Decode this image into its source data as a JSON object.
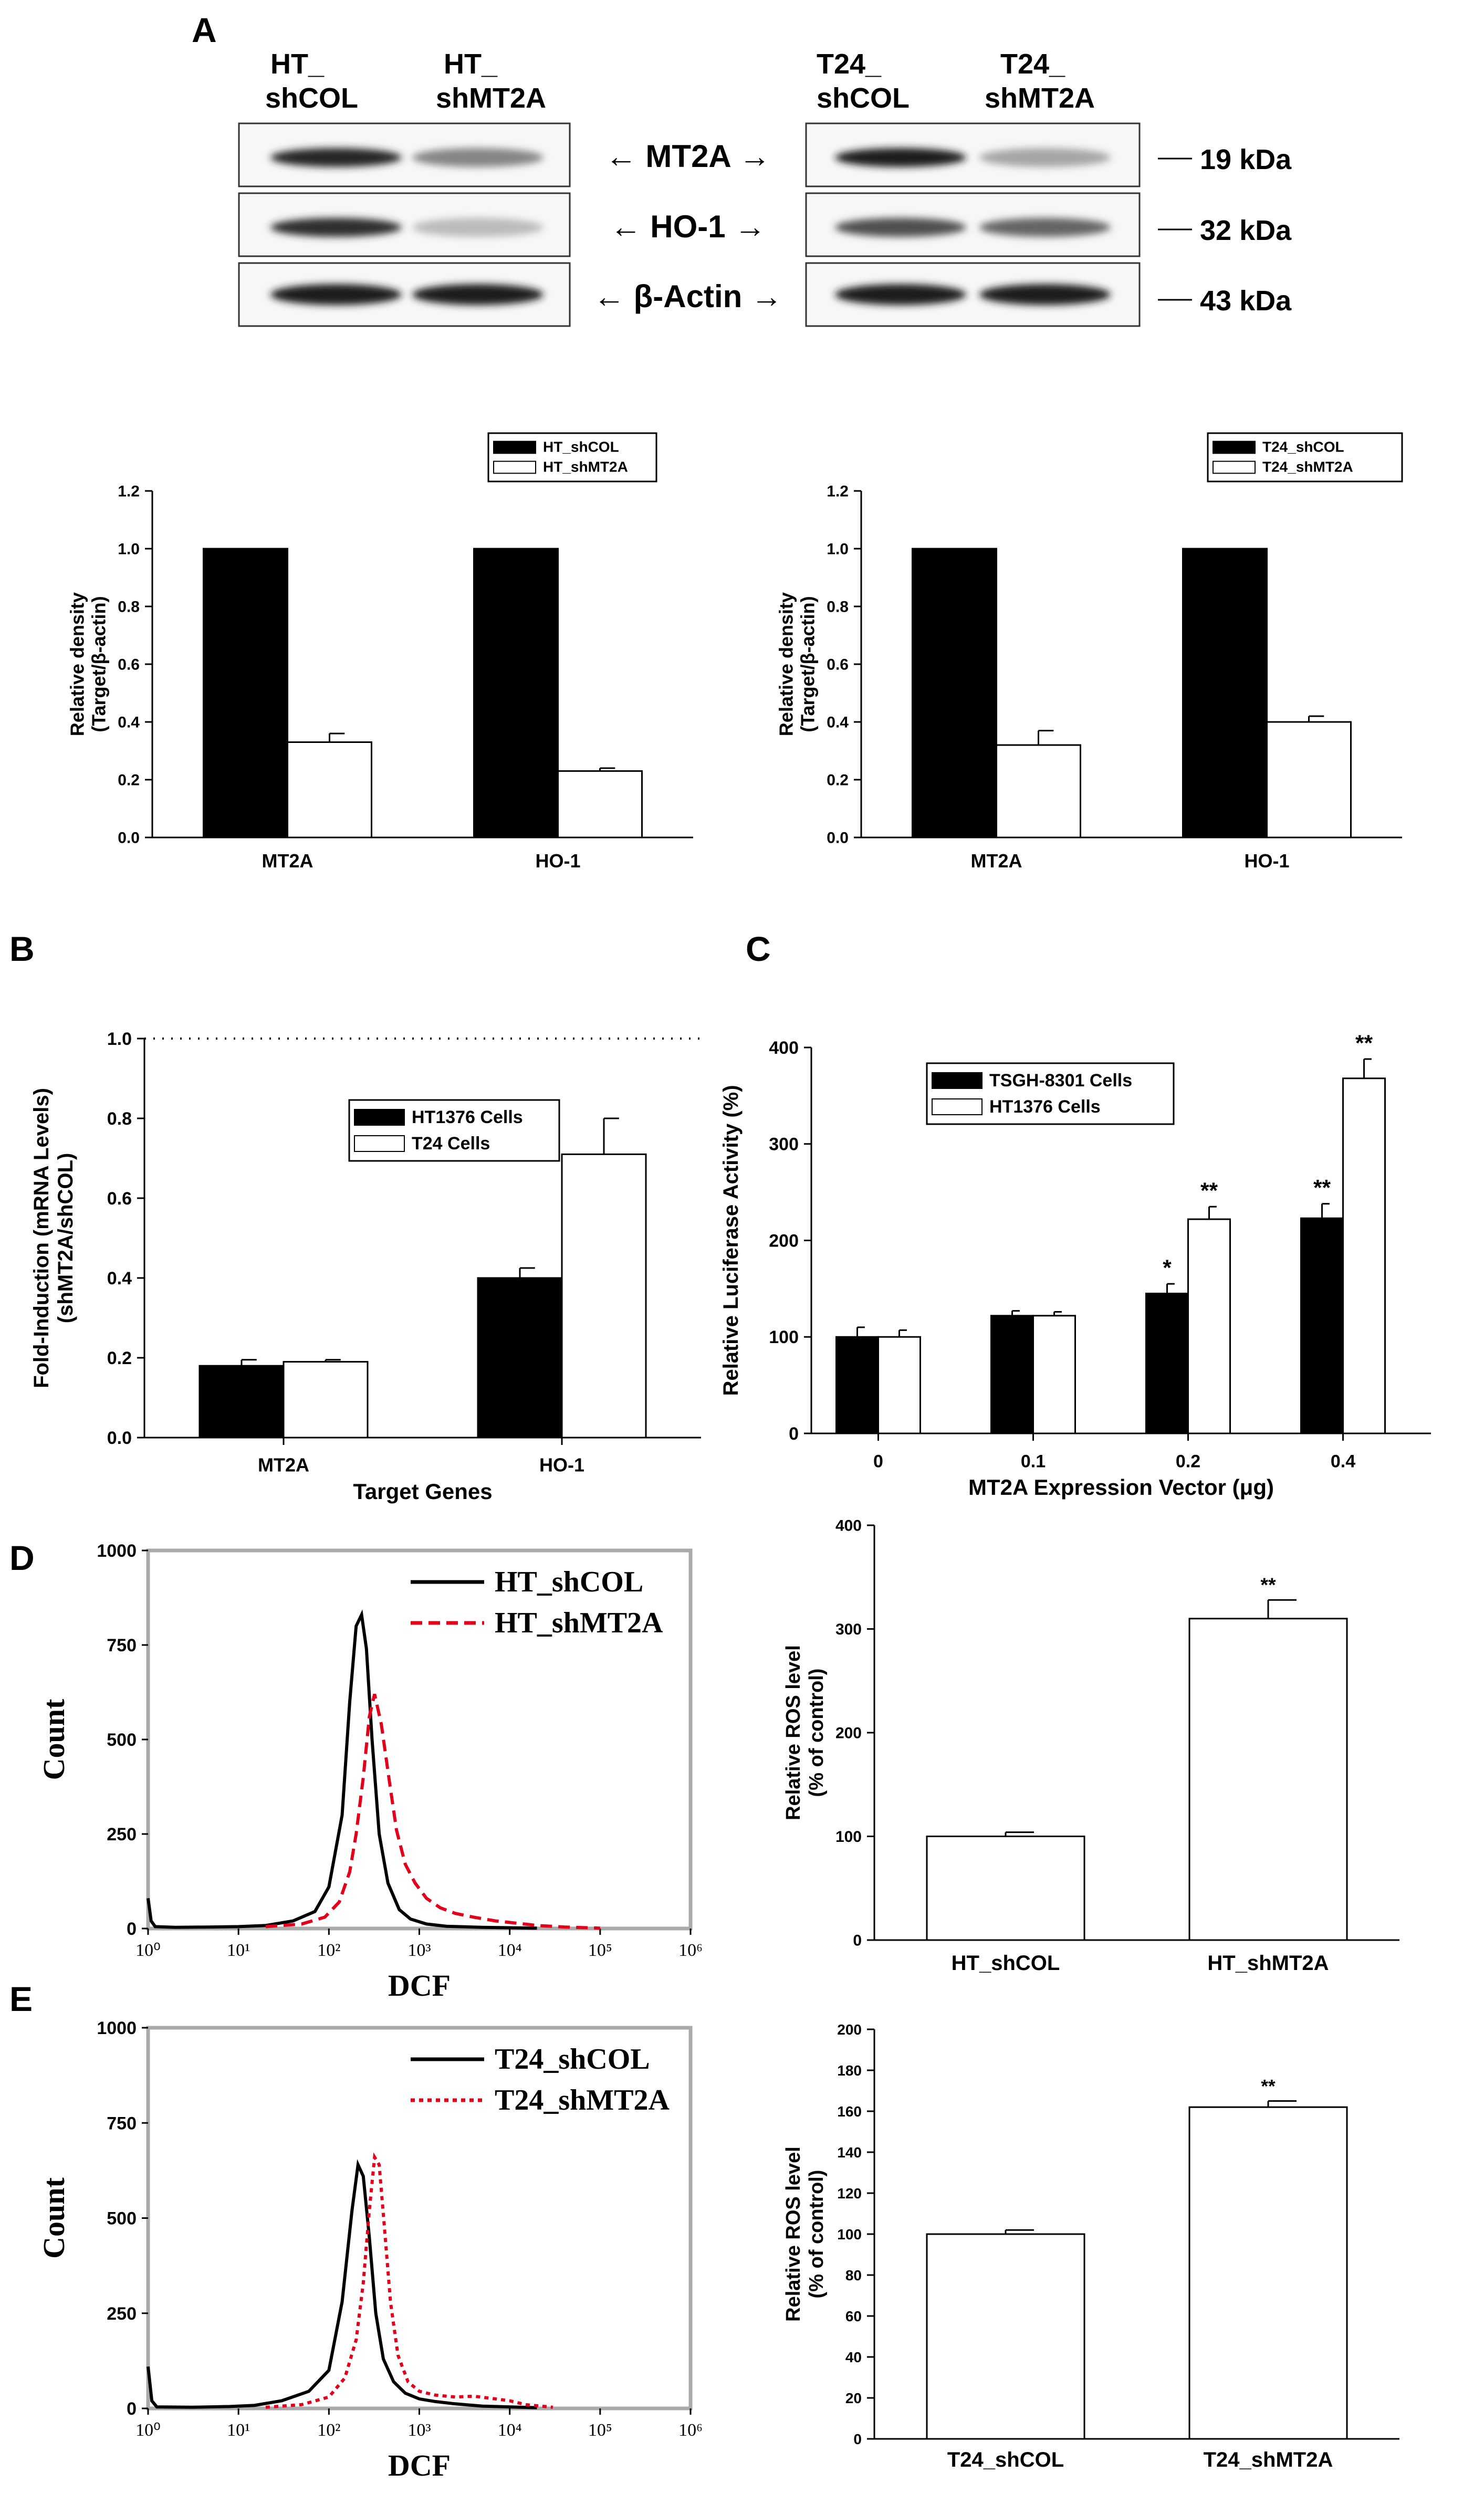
{
  "panel_labels": {
    "a": "A",
    "b": "B",
    "c": "C",
    "d": "D",
    "e": "E"
  },
  "western_blot": {
    "lanes_ht": [
      "HT_",
      "shCOL",
      "HT_",
      "shMT2A"
    ],
    "lanes_t24": [
      "T24_",
      "shCOL",
      "T24_",
      "shMT2A"
    ],
    "arrows": [
      "← MT2A →",
      "← HO-1 →",
      "← β-Actin →"
    ],
    "sizes": [
      "19 kDa",
      "32 kDa",
      "43 kDa"
    ],
    "bands": [
      {
        "ht": [
          0.9,
          0.45
        ],
        "t24": [
          0.95,
          0.3
        ]
      },
      {
        "ht": [
          0.85,
          0.2
        ],
        "t24": [
          0.7,
          0.6
        ]
      },
      {
        "ht": [
          0.95,
          0.95
        ],
        "t24": [
          0.95,
          0.95
        ]
      }
    ]
  },
  "chart_data": [
    {
      "id": "A-left",
      "type": "bar",
      "categories": [
        "MT2A",
        "HO-1"
      ],
      "series": [
        {
          "name": "HT_shCOL",
          "values": [
            1.0,
            1.0
          ],
          "errors": [
            0,
            0
          ],
          "color": "#000000"
        },
        {
          "name": "HT_shMT2A",
          "values": [
            0.33,
            0.23
          ],
          "errors": [
            0.03,
            0.01
          ],
          "color": "#ffffff"
        }
      ],
      "ylabel": [
        "Relative density",
        "(Target/β-actin)"
      ],
      "ylim": [
        0,
        1.2
      ],
      "yticks": [
        "0.0",
        "0.2",
        "0.4",
        "0.6",
        "0.8",
        "1.0",
        "1.2"
      ],
      "legend": "top"
    },
    {
      "id": "A-right",
      "type": "bar",
      "categories": [
        "MT2A",
        "HO-1"
      ],
      "series": [
        {
          "name": "T24_shCOL",
          "values": [
            1.0,
            1.0
          ],
          "errors": [
            0,
            0
          ],
          "color": "#000000"
        },
        {
          "name": "T24_shMT2A",
          "values": [
            0.32,
            0.4
          ],
          "errors": [
            0.05,
            0.02
          ],
          "color": "#ffffff"
        }
      ],
      "ylabel": [
        "Relative density",
        "(Target/β-actin)"
      ],
      "ylim": [
        0,
        1.2
      ],
      "yticks": [
        "0.0",
        "0.2",
        "0.4",
        "0.6",
        "0.8",
        "1.0",
        "1.2"
      ],
      "legend": "top-right"
    },
    {
      "id": "B",
      "type": "bar",
      "categories": [
        "MT2A",
        "HO-1"
      ],
      "series": [
        {
          "name": "HT1376 Cells",
          "values": [
            0.18,
            0.4
          ],
          "errors": [
            0.015,
            0.025
          ],
          "color": "#000000"
        },
        {
          "name": "T24 Cells",
          "values": [
            0.19,
            0.71
          ],
          "errors": [
            0.005,
            0.09
          ],
          "color": "#ffffff"
        }
      ],
      "xlabel": "Target Genes",
      "ylabel": [
        "Fold-Induction (mRNA Levels)",
        "(shMT2A/shCOL)"
      ],
      "ylim": [
        0,
        1.0
      ],
      "yticks": [
        "0.0",
        "0.2",
        "0.4",
        "0.6",
        "0.8",
        "1.0"
      ],
      "reference_line": 1.0,
      "legend": "center"
    },
    {
      "id": "C",
      "type": "bar",
      "categories": [
        "0",
        "0.1",
        "0.2",
        "0.4"
      ],
      "series": [
        {
          "name": "TSGH-8301 Cells",
          "values": [
            100,
            122,
            145,
            223
          ],
          "errors": [
            10,
            5,
            10,
            15
          ],
          "color": "#000000",
          "sig": [
            "",
            "",
            "*",
            "**"
          ]
        },
        {
          "name": "HT1376 Cells",
          "values": [
            100,
            122,
            222,
            368
          ],
          "errors": [
            7,
            4,
            13,
            20
          ],
          "color": "#ffffff",
          "sig": [
            "",
            "",
            "**",
            "**"
          ]
        }
      ],
      "xlabel": "MT2A Expression Vector (μg)",
      "ylabel": [
        "Relative Luciferase Activity (%)"
      ],
      "ylim": [
        0,
        400
      ],
      "yticks": [
        "0",
        "100",
        "200",
        "300",
        "400"
      ],
      "legend": "top-left"
    },
    {
      "id": "D-right",
      "type": "bar",
      "categories": [
        "HT_shCOL",
        "HT_shMT2A"
      ],
      "values": [
        100,
        310
      ],
      "errors": [
        4,
        18
      ],
      "sig": [
        "",
        "**"
      ],
      "ylabel": [
        "Relative ROS level",
        "(% of control)"
      ],
      "ylim": [
        0,
        400
      ],
      "yticks": [
        "0",
        "100",
        "200",
        "300",
        "400"
      ]
    },
    {
      "id": "E-right",
      "type": "bar",
      "categories": [
        "T24_shCOL",
        "T24_shMT2A"
      ],
      "values": [
        100,
        162
      ],
      "errors": [
        2,
        3
      ],
      "sig": [
        "",
        "**"
      ],
      "ylabel": [
        "Relative ROS level",
        "(% of control)"
      ],
      "ylim": [
        0,
        200
      ],
      "yticks": [
        "0",
        "20",
        "40",
        "60",
        "80",
        "100",
        "120",
        "140",
        "160",
        "180",
        "200"
      ]
    },
    {
      "id": "D-left",
      "type": "line",
      "xlabel": "DCF",
      "ylabel": "Count",
      "xscale": "log",
      "xlim": [
        1,
        1000000
      ],
      "ylim": [
        0,
        1000
      ],
      "xticks": [
        "10⁰",
        "10¹",
        "10²",
        "10³",
        "10⁴",
        "10⁵",
        "10⁶"
      ],
      "yticks": [
        "0",
        "250",
        "500",
        "750",
        "1000"
      ],
      "series": [
        {
          "name": "HT_shCOL",
          "style": "solid",
          "color": "#000000",
          "points": [
            [
              1.0,
              80
            ],
            [
              1.08,
              20
            ],
            [
              1.2,
              5
            ],
            [
              2,
              3
            ],
            [
              5,
              4
            ],
            [
              10,
              5
            ],
            [
              20,
              8
            ],
            [
              40,
              20
            ],
            [
              70,
              45
            ],
            [
              100,
              110
            ],
            [
              140,
              300
            ],
            [
              170,
              600
            ],
            [
              200,
              800
            ],
            [
              230,
              830
            ],
            [
              260,
              740
            ],
            [
              300,
              500
            ],
            [
              360,
              250
            ],
            [
              450,
              120
            ],
            [
              600,
              50
            ],
            [
              800,
              25
            ],
            [
              1200,
              12
            ],
            [
              2000,
              6
            ],
            [
              5000,
              3
            ],
            [
              20000,
              1
            ]
          ]
        },
        {
          "name": "HT_shMT2A",
          "style": "dashed",
          "color": "#e3001b",
          "points": [
            [
              20,
              5
            ],
            [
              50,
              12
            ],
            [
              90,
              30
            ],
            [
              130,
              70
            ],
            [
              170,
              150
            ],
            [
              200,
              250
            ],
            [
              240,
              400
            ],
            [
              280,
              560
            ],
            [
              320,
              620
            ],
            [
              380,
              540
            ],
            [
              460,
              400
            ],
            [
              560,
              260
            ],
            [
              700,
              170
            ],
            [
              900,
              120
            ],
            [
              1200,
              80
            ],
            [
              1700,
              55
            ],
            [
              2500,
              40
            ],
            [
              4000,
              30
            ],
            [
              7000,
              20
            ],
            [
              12000,
              14
            ],
            [
              20000,
              8
            ],
            [
              40000,
              4
            ],
            [
              100000,
              1
            ]
          ]
        }
      ]
    },
    {
      "id": "E-left",
      "type": "line",
      "xlabel": "DCF",
      "ylabel": "Count",
      "xscale": "log",
      "xlim": [
        1,
        1000000
      ],
      "ylim": [
        0,
        1000
      ],
      "xticks": [
        "10⁰",
        "10¹",
        "10²",
        "10³",
        "10⁴",
        "10⁵",
        "10⁶"
      ],
      "yticks": [
        "0",
        "250",
        "500",
        "750",
        "1000"
      ],
      "series": [
        {
          "name": "T24_shCOL",
          "style": "solid",
          "color": "#000000",
          "points": [
            [
              1.0,
              110
            ],
            [
              1.1,
              20
            ],
            [
              1.25,
              4
            ],
            [
              3,
              3
            ],
            [
              8,
              5
            ],
            [
              15,
              8
            ],
            [
              30,
              20
            ],
            [
              60,
              45
            ],
            [
              100,
              100
            ],
            [
              140,
              280
            ],
            [
              180,
              520
            ],
            [
              210,
              640
            ],
            [
              240,
              610
            ],
            [
              280,
              450
            ],
            [
              330,
              250
            ],
            [
              400,
              130
            ],
            [
              520,
              70
            ],
            [
              700,
              40
            ],
            [
              1000,
              25
            ],
            [
              1500,
              18
            ],
            [
              2500,
              12
            ],
            [
              5000,
              6
            ],
            [
              20000,
              2
            ]
          ]
        },
        {
          "name": "T24_shMT2A",
          "style": "dotted",
          "color": "#e3001b",
          "points": [
            [
              20,
              3
            ],
            [
              50,
              10
            ],
            [
              100,
              30
            ],
            [
              150,
              80
            ],
            [
              200,
              180
            ],
            [
              240,
              330
            ],
            [
              280,
              520
            ],
            [
              320,
              660
            ],
            [
              360,
              640
            ],
            [
              410,
              480
            ],
            [
              480,
              280
            ],
            [
              580,
              140
            ],
            [
              750,
              70
            ],
            [
              1000,
              45
            ],
            [
              1500,
              35
            ],
            [
              2500,
              30
            ],
            [
              4000,
              32
            ],
            [
              7000,
              25
            ],
            [
              10000,
              20
            ],
            [
              15000,
              10
            ],
            [
              30000,
              3
            ]
          ]
        }
      ]
    }
  ]
}
